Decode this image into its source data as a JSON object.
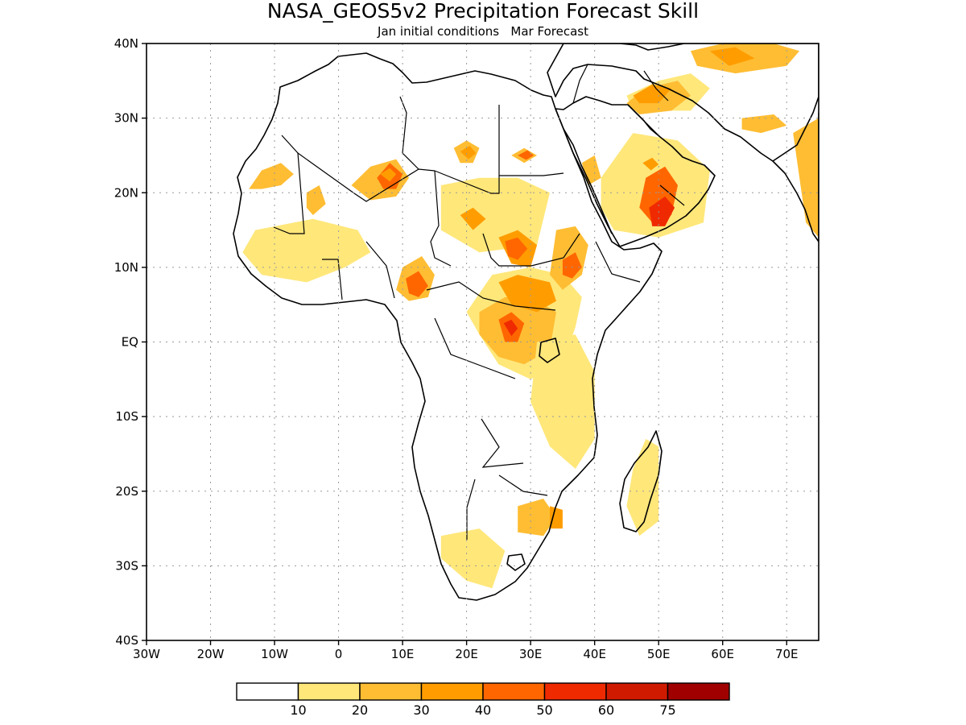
{
  "title": "NASA_GEOS5v2 Precipitation Forecast Skill",
  "subtitle": "Jan initial conditions   Mar Forecast",
  "axes": {
    "lon_range": [
      -30,
      75
    ],
    "lat_range": [
      -40,
      40
    ],
    "lon_ticks": [
      {
        "value": -30,
        "label": "30W"
      },
      {
        "value": -20,
        "label": "20W"
      },
      {
        "value": -10,
        "label": "10W"
      },
      {
        "value": 0,
        "label": "0"
      },
      {
        "value": 10,
        "label": "10E"
      },
      {
        "value": 20,
        "label": "20E"
      },
      {
        "value": 30,
        "label": "30E"
      },
      {
        "value": 40,
        "label": "40E"
      },
      {
        "value": 50,
        "label": "50E"
      },
      {
        "value": 60,
        "label": "60E"
      },
      {
        "value": 70,
        "label": "70E"
      }
    ],
    "lat_ticks": [
      {
        "value": 40,
        "label": "40N"
      },
      {
        "value": 30,
        "label": "30N"
      },
      {
        "value": 20,
        "label": "20N"
      },
      {
        "value": 10,
        "label": "10N"
      },
      {
        "value": 0,
        "label": "EQ"
      },
      {
        "value": -10,
        "label": "10S"
      },
      {
        "value": -20,
        "label": "20S"
      },
      {
        "value": -30,
        "label": "30S"
      },
      {
        "value": -40,
        "label": "40S"
      }
    ],
    "grid": "dotted"
  },
  "colorbar": {
    "colors": [
      "#ffffff",
      "#ffe77a",
      "#ffbd33",
      "#ff9d00",
      "#ff6600",
      "#f02a00",
      "#d01a00",
      "#a00000"
    ],
    "labels": [
      "10",
      "20",
      "30",
      "40",
      "50",
      "60",
      "75"
    ]
  },
  "skill_regions": [
    {
      "level": 2,
      "pts": [
        [
          -14,
          20.5
        ],
        [
          -12,
          23
        ],
        [
          -9,
          24
        ],
        [
          -7,
          22.5
        ],
        [
          -9,
          21
        ],
        [
          -12,
          20.5
        ]
      ]
    },
    {
      "level": 2,
      "pts": [
        [
          -5,
          20
        ],
        [
          -3,
          21
        ],
        [
          -2,
          18.5
        ],
        [
          -4,
          17
        ],
        [
          -5,
          18
        ]
      ]
    },
    {
      "level": 2,
      "pts": [
        [
          2,
          21
        ],
        [
          5,
          23.5
        ],
        [
          9,
          24.5
        ],
        [
          11,
          22
        ],
        [
          9,
          19.5
        ],
        [
          5,
          19
        ]
      ]
    },
    {
      "level": 4,
      "pts": [
        [
          6,
          22
        ],
        [
          8,
          24
        ],
        [
          10,
          22.5
        ],
        [
          9,
          20.5
        ],
        [
          7,
          20.5
        ]
      ]
    },
    {
      "level": 3,
      "pts": [
        [
          6.5,
          22.5
        ],
        [
          8,
          23.3
        ],
        [
          9,
          22.5
        ],
        [
          8,
          21.5
        ]
      ]
    },
    {
      "level": 2,
      "pts": [
        [
          -12,
          13
        ],
        [
          -8,
          14.5
        ],
        [
          -3,
          13.5
        ],
        [
          -1,
          10.5
        ],
        [
          -5,
          8.5
        ],
        [
          -10,
          9
        ],
        [
          -12,
          10.5
        ]
      ]
    },
    {
      "level": 1,
      "pts": [
        [
          -13,
          15
        ],
        [
          -4,
          16.5
        ],
        [
          3,
          15
        ],
        [
          5,
          12
        ],
        [
          1,
          10
        ],
        [
          -5,
          8
        ],
        [
          -12,
          9
        ],
        [
          -15,
          12
        ]
      ]
    },
    {
      "level": 2,
      "pts": [
        [
          18,
          19
        ],
        [
          23,
          20.5
        ],
        [
          28,
          20
        ],
        [
          31,
          17.5
        ],
        [
          28,
          14
        ],
        [
          23,
          14
        ],
        [
          19,
          15.5
        ]
      ]
    },
    {
      "level": 1,
      "pts": [
        [
          16,
          21
        ],
        [
          22,
          22
        ],
        [
          28,
          22
        ],
        [
          33,
          20
        ],
        [
          31,
          13
        ],
        [
          22,
          12
        ],
        [
          16,
          15
        ]
      ]
    },
    {
      "level": 3,
      "pts": [
        [
          19,
          17
        ],
        [
          21,
          18
        ],
        [
          23,
          16.5
        ],
        [
          21,
          15
        ]
      ]
    },
    {
      "level": 2,
      "pts": [
        [
          18,
          26
        ],
        [
          20,
          27
        ],
        [
          22,
          26
        ],
        [
          21,
          24
        ],
        [
          19,
          24
        ]
      ]
    },
    {
      "level": 3,
      "pts": [
        [
          19,
          25.5
        ],
        [
          20.5,
          26.3
        ],
        [
          21.5,
          25.3
        ],
        [
          20.3,
          24.5
        ]
      ]
    },
    {
      "level": 2,
      "pts": [
        [
          27,
          25
        ],
        [
          29,
          26
        ],
        [
          31,
          25
        ],
        [
          29,
          24
        ]
      ]
    },
    {
      "level": 4,
      "pts": [
        [
          28,
          25
        ],
        [
          29.5,
          25.7
        ],
        [
          30.5,
          25
        ],
        [
          29.3,
          24.4
        ]
      ]
    },
    {
      "level": 2,
      "pts": [
        [
          10,
          10
        ],
        [
          13,
          11.5
        ],
        [
          15,
          9
        ],
        [
          14,
          6
        ],
        [
          11,
          5.5
        ],
        [
          9,
          7
        ]
      ]
    },
    {
      "level": 4,
      "pts": [
        [
          10.5,
          8.5
        ],
        [
          12.5,
          9.5
        ],
        [
          14,
          7.5
        ],
        [
          12.5,
          6
        ],
        [
          11,
          6.5
        ]
      ]
    },
    {
      "level": 3,
      "pts": [
        [
          25,
          14
        ],
        [
          28,
          15
        ],
        [
          31,
          13
        ],
        [
          30,
          10
        ],
        [
          27,
          10.5
        ]
      ]
    },
    {
      "level": 4,
      "pts": [
        [
          26,
          13.5
        ],
        [
          28,
          14
        ],
        [
          29.5,
          12.5
        ],
        [
          28,
          11
        ],
        [
          26.5,
          11.5
        ]
      ]
    },
    {
      "level": 1,
      "pts": [
        [
          24,
          9
        ],
        [
          30,
          10
        ],
        [
          35,
          9
        ],
        [
          38,
          6
        ],
        [
          37,
          2
        ],
        [
          35,
          -3
        ],
        [
          30,
          -5
        ],
        [
          25,
          -3
        ],
        [
          22,
          1
        ],
        [
          20,
          4
        ]
      ]
    },
    {
      "level": 2,
      "pts": [
        [
          22,
          4
        ],
        [
          26,
          6
        ],
        [
          30,
          6
        ],
        [
          34,
          4
        ],
        [
          33,
          -1
        ],
        [
          29,
          -3
        ],
        [
          25,
          -2
        ],
        [
          22,
          1
        ]
      ]
    },
    {
      "level": 3,
      "pts": [
        [
          25,
          8
        ],
        [
          28,
          9
        ],
        [
          33,
          8
        ],
        [
          34,
          5.5
        ],
        [
          31,
          4
        ],
        [
          27,
          5
        ]
      ]
    },
    {
      "level": 4,
      "pts": [
        [
          25,
          3
        ],
        [
          27,
          4
        ],
        [
          29,
          2.5
        ],
        [
          28,
          0
        ],
        [
          26,
          0
        ]
      ]
    },
    {
      "level": 5,
      "pts": [
        [
          25.8,
          2.5
        ],
        [
          27,
          3
        ],
        [
          28,
          1.8
        ],
        [
          27,
          0.8
        ]
      ]
    },
    {
      "level": 2,
      "pts": [
        [
          34,
          15
        ],
        [
          37,
          15.5
        ],
        [
          39,
          13
        ],
        [
          38,
          9
        ],
        [
          35,
          7
        ],
        [
          33,
          9
        ]
      ]
    },
    {
      "level": 4,
      "pts": [
        [
          35,
          11
        ],
        [
          37,
          12
        ],
        [
          38,
          10
        ],
        [
          36.5,
          8.5
        ],
        [
          35,
          9
        ]
      ]
    },
    {
      "level": 2,
      "pts": [
        [
          32,
          -2
        ],
        [
          36,
          -1
        ],
        [
          38,
          -5
        ],
        [
          39,
          -10
        ],
        [
          37,
          -13
        ],
        [
          34,
          -11
        ],
        [
          32,
          -6
        ]
      ]
    },
    {
      "level": 1,
      "pts": [
        [
          31,
          0
        ],
        [
          37,
          1
        ],
        [
          40,
          -4
        ],
        [
          40,
          -13
        ],
        [
          37,
          -17
        ],
        [
          33,
          -14
        ],
        [
          30,
          -8
        ]
      ]
    },
    {
      "level": 2,
      "pts": [
        [
          28,
          -22
        ],
        [
          32,
          -21
        ],
        [
          34,
          -23.5
        ],
        [
          32,
          -26
        ],
        [
          28,
          -25.5
        ]
      ]
    },
    {
      "level": 3,
      "pts": [
        [
          33,
          -22
        ],
        [
          35,
          -22.5
        ],
        [
          35,
          -25
        ],
        [
          33,
          -25
        ]
      ]
    },
    {
      "level": 2,
      "pts": [
        [
          18,
          -27
        ],
        [
          21,
          -26.5
        ],
        [
          23,
          -28.5
        ],
        [
          20,
          -30
        ],
        [
          18,
          -29
        ]
      ]
    },
    {
      "level": 1,
      "pts": [
        [
          16,
          -26
        ],
        [
          22,
          -25
        ],
        [
          26,
          -28
        ],
        [
          24,
          -33
        ],
        [
          20,
          -32
        ],
        [
          16,
          -29
        ]
      ]
    },
    {
      "level": 1,
      "pts": [
        [
          45,
          33
        ],
        [
          50,
          35
        ],
        [
          55,
          36
        ],
        [
          58,
          34
        ],
        [
          55,
          31
        ],
        [
          50,
          31
        ],
        [
          46,
          31
        ]
      ]
    },
    {
      "level": 2,
      "pts": [
        [
          45,
          32
        ],
        [
          48,
          34
        ],
        [
          53,
          35
        ],
        [
          55,
          33
        ],
        [
          52,
          31
        ],
        [
          47,
          30.5
        ]
      ]
    },
    {
      "level": 3,
      "pts": [
        [
          46,
          33
        ],
        [
          49,
          34.5
        ],
        [
          52,
          34
        ],
        [
          50,
          32
        ],
        [
          47,
          32
        ]
      ]
    },
    {
      "level": 2,
      "pts": [
        [
          55,
          39
        ],
        [
          60,
          40
        ],
        [
          68,
          40
        ],
        [
          72,
          39
        ],
        [
          70,
          37
        ],
        [
          62,
          36
        ],
        [
          56,
          37
        ]
      ]
    },
    {
      "level": 3,
      "pts": [
        [
          58,
          39
        ],
        [
          62,
          39.5
        ],
        [
          65,
          38
        ],
        [
          61,
          37
        ]
      ]
    },
    {
      "level": 2,
      "pts": [
        [
          63,
          30
        ],
        [
          68,
          30.5
        ],
        [
          70,
          29
        ],
        [
          66,
          28
        ],
        [
          63,
          28.5
        ]
      ]
    },
    {
      "level": 2,
      "pts": [
        [
          43,
          24
        ],
        [
          47,
          27
        ],
        [
          52,
          25
        ],
        [
          55,
          21
        ],
        [
          56,
          17
        ],
        [
          52,
          15
        ],
        [
          47,
          15
        ],
        [
          44,
          18
        ]
      ]
    },
    {
      "level": 1,
      "pts": [
        [
          41,
          22
        ],
        [
          46,
          28
        ],
        [
          53,
          27
        ],
        [
          58,
          23
        ],
        [
          57,
          16
        ],
        [
          50,
          14
        ],
        [
          43,
          15
        ],
        [
          41,
          18
        ]
      ]
    },
    {
      "level": 4,
      "pts": [
        [
          48,
          22
        ],
        [
          51,
          23.5
        ],
        [
          53,
          21
        ],
        [
          52,
          17
        ],
        [
          49,
          16
        ],
        [
          47,
          18
        ]
      ]
    },
    {
      "level": 5,
      "pts": [
        [
          48.5,
          18
        ],
        [
          51,
          19.5
        ],
        [
          52.5,
          18
        ],
        [
          51,
          15.5
        ],
        [
          49,
          15.5
        ]
      ]
    },
    {
      "level": 3,
      "pts": [
        [
          47.5,
          24
        ],
        [
          49,
          24.7
        ],
        [
          50,
          23.8
        ],
        [
          48.8,
          23
        ]
      ]
    },
    {
      "level": 2,
      "pts": [
        [
          38,
          24
        ],
        [
          40,
          25
        ],
        [
          41,
          22
        ],
        [
          39,
          21
        ]
      ]
    },
    {
      "level": 2,
      "pts": [
        [
          71,
          28
        ],
        [
          75,
          30
        ],
        [
          75,
          14
        ],
        [
          73,
          16
        ],
        [
          72,
          22
        ]
      ]
    },
    {
      "level": 1,
      "pts": [
        [
          48,
          -13
        ],
        [
          50,
          -14
        ],
        [
          50,
          -24
        ],
        [
          47,
          -26
        ],
        [
          45,
          -22
        ],
        [
          46,
          -17
        ]
      ]
    }
  ]
}
